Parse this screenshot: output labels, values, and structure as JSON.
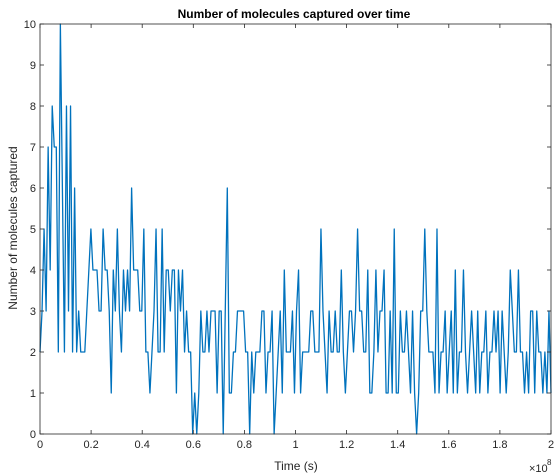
{
  "chart_data": {
    "type": "line",
    "title": "Number of molecules captured over time",
    "xlabel": "Time (s)",
    "ylabel": "Number of molecules captured",
    "x_multiplier_label": "×10",
    "x_multiplier_exponent": "8",
    "xlim": [
      0,
      2
    ],
    "ylim": [
      0,
      10
    ],
    "x_ticks": [
      0,
      0.2,
      0.4,
      0.6,
      0.8,
      1,
      1.2,
      1.4,
      1.6,
      1.8,
      2
    ],
    "x_tick_labels": [
      "0",
      "0.2",
      "0.4",
      "0.6",
      "0.8",
      "1",
      "1.2",
      "1.4",
      "1.6",
      "1.8",
      "2"
    ],
    "y_ticks": [
      0,
      1,
      2,
      3,
      4,
      5,
      6,
      7,
      8,
      9,
      10
    ],
    "y_tick_labels": [
      "0",
      "1",
      "2",
      "3",
      "4",
      "5",
      "6",
      "7",
      "8",
      "9",
      "10"
    ],
    "grid": false,
    "legend": "none",
    "series": [
      {
        "color": "#0072BD",
        "values": [
          2,
          3,
          5,
          3,
          7,
          4,
          8,
          7,
          7,
          2,
          10,
          6,
          2,
          8,
          3,
          8,
          2,
          6,
          2,
          3,
          2,
          2,
          2,
          3,
          4,
          5,
          4,
          4,
          4,
          3,
          3,
          5,
          4,
          4,
          3,
          1,
          4,
          3,
          5,
          3,
          2,
          4,
          3,
          4,
          3,
          6,
          4,
          4,
          4,
          3,
          3,
          5,
          2,
          2,
          1,
          2,
          3,
          5,
          2,
          2,
          5,
          2,
          4,
          4,
          3,
          4,
          4,
          1,
          4,
          3,
          4,
          2,
          3,
          2,
          2,
          0,
          1,
          0,
          1,
          3,
          2,
          2,
          3,
          2,
          3,
          3,
          3,
          1,
          3,
          3,
          0,
          3,
          6,
          1,
          1,
          2,
          2,
          3,
          3,
          3,
          3,
          2,
          2,
          0,
          2,
          1,
          2,
          2,
          2,
          3,
          3,
          1,
          2,
          2,
          3,
          0,
          1,
          2,
          3,
          1,
          4,
          2,
          2,
          2,
          3,
          1,
          3,
          4,
          1,
          2,
          2,
          2,
          2,
          3,
          3,
          2,
          2,
          2,
          5,
          3,
          2,
          1,
          3,
          2,
          2,
          3,
          2,
          2,
          4,
          2,
          1,
          2,
          3,
          3,
          2,
          3,
          5,
          3,
          3,
          2,
          2,
          4,
          1,
          1,
          2,
          4,
          2,
          3,
          3,
          4,
          1,
          1,
          3,
          1,
          5,
          1,
          1,
          3,
          2,
          2,
          3,
          2,
          1,
          3,
          1,
          0,
          1,
          3,
          3,
          5,
          3,
          2,
          2,
          2,
          1,
          5,
          1,
          2,
          2,
          3,
          1,
          2,
          3,
          1,
          4,
          1,
          2,
          2,
          4,
          2,
          1,
          2,
          3,
          2,
          1,
          3,
          1,
          2,
          2,
          3,
          1,
          2,
          2,
          3,
          2,
          3,
          1,
          3,
          2,
          1,
          2,
          4,
          3,
          2,
          2,
          4,
          2,
          2,
          1,
          2,
          1,
          3,
          3,
          1,
          3,
          2,
          2,
          1,
          2,
          1,
          3,
          1
        ]
      }
    ]
  }
}
